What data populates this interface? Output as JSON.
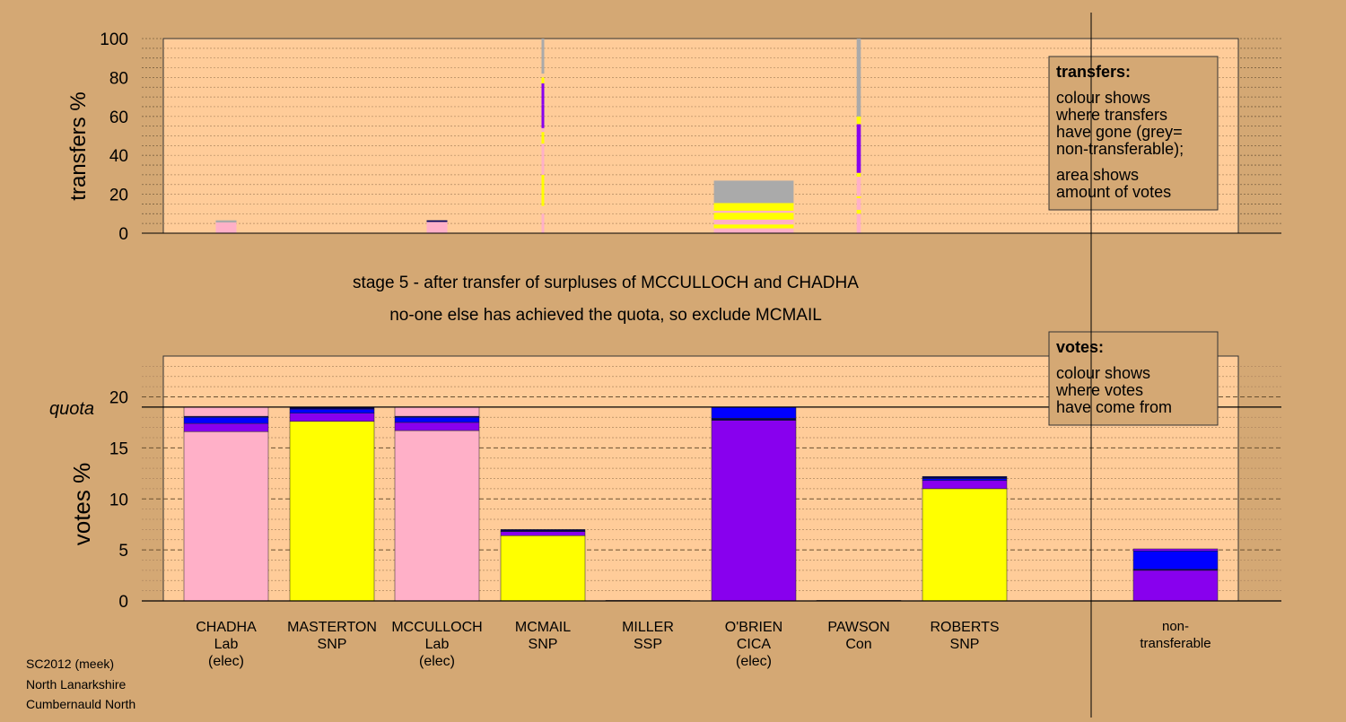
{
  "colors": {
    "background": "#d4a874",
    "plot_area": "#ffcc99",
    "lab": "#ffb0c8",
    "snp": "#ffff00",
    "cica": "#8800ee",
    "blue": "#0000ff",
    "navy": "#00005a",
    "grey": "#aaaaaa"
  },
  "title": {
    "line1": "stage 5 - after transfer of surpluses of MCCULLOCH and CHADHA",
    "line2": "no-one else has achieved the quota, so exclude MCMAIL"
  },
  "footer": {
    "line1": "SC2012 (meek)",
    "line2": "North Lanarkshire",
    "line3": "Cumbernauld North"
  },
  "legend_transfers": {
    "heading": "transfers:",
    "lines": [
      "colour shows",
      "where transfers",
      "have gone (grey=",
      "non-transferable);",
      "area shows",
      "amount of votes"
    ]
  },
  "legend_votes": {
    "heading": "votes:",
    "lines": [
      "colour shows",
      "where votes",
      "have come from"
    ]
  },
  "chart_data": [
    {
      "type": "bar",
      "name": "transfers",
      "ylabel": "transfers %",
      "ylim": [
        0,
        100
      ],
      "yticks": [
        0,
        20,
        40,
        60,
        80,
        100
      ],
      "grid": true,
      "columns": [
        {
          "index": 0,
          "width": 0.07,
          "segments": [
            {
              "from": 0,
              "to": 5.5,
              "color": "lab"
            },
            {
              "from": 5.5,
              "to": 6.6,
              "color": "grey"
            }
          ]
        },
        {
          "index": 2,
          "width": 0.07,
          "segments": [
            {
              "from": 0,
              "to": 5.8,
              "color": "lab"
            },
            {
              "from": 5.8,
              "to": 6.6,
              "color": "navy"
            }
          ]
        },
        {
          "index": 3,
          "width": 0.0008,
          "segments": [
            {
              "from": 0,
              "to": 10,
              "color": "lab"
            },
            {
              "from": 14,
              "to": 30,
              "color": "snp"
            },
            {
              "from": 30,
              "to": 46,
              "color": "lab"
            },
            {
              "from": 46,
              "to": 52,
              "color": "snp"
            },
            {
              "from": 52,
              "to": 54,
              "color": "lab"
            },
            {
              "from": 54,
              "to": 60,
              "color": "cica"
            },
            {
              "from": 60,
              "to": 66,
              "color": "cica"
            },
            {
              "from": 66,
              "to": 77,
              "color": "cica"
            },
            {
              "from": 77,
              "to": 80,
              "color": "snp"
            },
            {
              "from": 82,
              "to": 100,
              "color": "grey"
            }
          ]
        },
        {
          "index": 5,
          "width": 0.27,
          "segments": [
            {
              "from": 0,
              "to": 2.5,
              "color": "lab"
            },
            {
              "from": 2.5,
              "to": 4.5,
              "color": "snp"
            },
            {
              "from": 4.5,
              "to": 7,
              "color": "lab"
            },
            {
              "from": 7,
              "to": 10.5,
              "color": "snp"
            },
            {
              "from": 10.5,
              "to": 11.5,
              "color": "lab"
            },
            {
              "from": 11.5,
              "to": 15.5,
              "color": "snp"
            },
            {
              "from": 15.5,
              "to": 27,
              "color": "grey"
            }
          ]
        },
        {
          "index": 6,
          "width": 0.014,
          "segments": [
            {
              "from": 0,
              "to": 10,
              "color": "lab"
            },
            {
              "from": 10,
              "to": 12,
              "color": "snp"
            },
            {
              "from": 12,
              "to": 18,
              "color": "lab"
            },
            {
              "from": 18,
              "to": 19,
              "color": "snp"
            },
            {
              "from": 19,
              "to": 29,
              "color": "lab"
            },
            {
              "from": 29,
              "to": 31,
              "color": "snp"
            },
            {
              "from": 31,
              "to": 56,
              "color": "cica"
            },
            {
              "from": 56,
              "to": 60,
              "color": "snp"
            },
            {
              "from": 60,
              "to": 100,
              "color": "grey"
            }
          ]
        }
      ]
    },
    {
      "type": "bar",
      "name": "votes",
      "ylabel": "votes %",
      "ylim": [
        0,
        24
      ],
      "yticks": [
        0,
        5,
        10,
        15,
        20
      ],
      "quota": 19,
      "quota_label": "quota",
      "grid": true,
      "candidates": [
        {
          "name": "CHADHA",
          "party": "Lab",
          "status": "(elec)",
          "segments": [
            {
              "value": 16.6,
              "color": "lab"
            },
            {
              "value": 0.8,
              "color": "cica"
            },
            {
              "value": 0.6,
              "color": "blue"
            },
            {
              "value": 0.1,
              "color": "navy"
            },
            {
              "value": 0.9,
              "color": "lab"
            }
          ]
        },
        {
          "name": "MASTERTON",
          "party": "SNP",
          "status": "",
          "segments": [
            {
              "value": 17.6,
              "color": "snp"
            },
            {
              "value": 0.8,
              "color": "cica"
            },
            {
              "value": 0.4,
              "color": "blue"
            },
            {
              "value": 0.2,
              "color": "navy"
            }
          ]
        },
        {
          "name": "MCCULLOCH",
          "party": "Lab",
          "status": "(elec)",
          "segments": [
            {
              "value": 16.7,
              "color": "lab"
            },
            {
              "value": 0.8,
              "color": "cica"
            },
            {
              "value": 0.5,
              "color": "blue"
            },
            {
              "value": 0.1,
              "color": "navy"
            },
            {
              "value": 0.9,
              "color": "lab"
            }
          ]
        },
        {
          "name": "MCMAIL",
          "party": "SNP",
          "status": "",
          "segments": [
            {
              "value": 6.4,
              "color": "snp"
            },
            {
              "value": 0.4,
              "color": "cica"
            },
            {
              "value": 0.2,
              "color": "navy"
            }
          ]
        },
        {
          "name": "MILLER",
          "party": "SSP",
          "status": "",
          "segments": [
            {
              "value": 0.05,
              "color": "cica"
            }
          ]
        },
        {
          "name": "O'BRIEN",
          "party": "CICA",
          "status": "(elec)",
          "segments": [
            {
              "value": 17.7,
              "color": "cica"
            },
            {
              "value": 0.2,
              "color": "navy"
            },
            {
              "value": 1.1,
              "color": "blue"
            }
          ]
        },
        {
          "name": "PAWSON",
          "party": "Con",
          "status": "",
          "segments": [
            {
              "value": 0.05,
              "color": "cica"
            }
          ]
        },
        {
          "name": "ROBERTS",
          "party": "SNP",
          "status": "",
          "segments": [
            {
              "value": 11.0,
              "color": "snp"
            },
            {
              "value": 0.8,
              "color": "cica"
            },
            {
              "value": 0.2,
              "color": "blue"
            },
            {
              "value": 0.2,
              "color": "navy"
            }
          ]
        }
      ],
      "nontransferable": {
        "label": "non-transferable",
        "segments": [
          {
            "value": 3.0,
            "color": "cica"
          },
          {
            "value": 0.1,
            "color": "navy"
          },
          {
            "value": 1.8,
            "color": "blue"
          },
          {
            "value": 0.2,
            "color": "cica"
          }
        ]
      }
    }
  ]
}
